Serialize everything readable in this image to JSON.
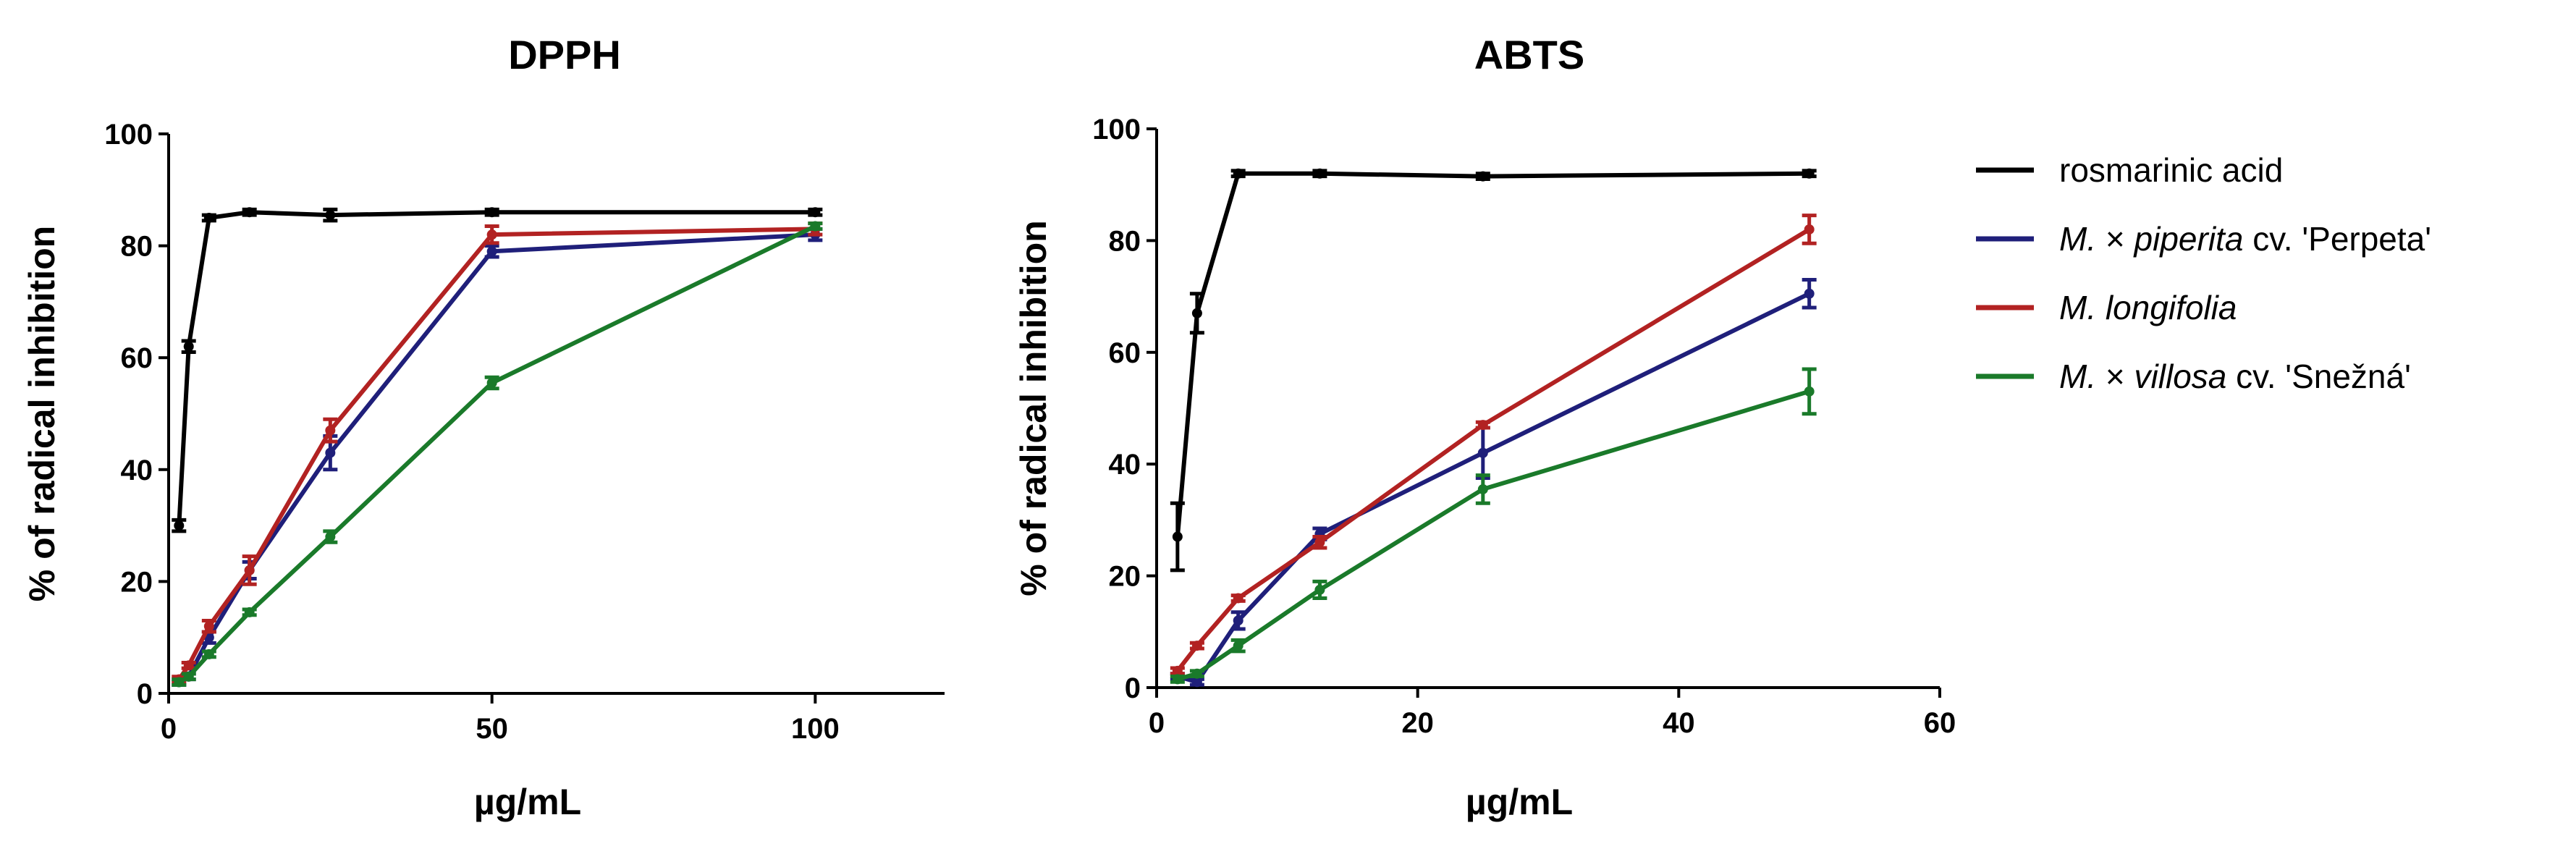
{
  "chart_data": [
    {
      "type": "line",
      "title": "DPPH",
      "xlabel": "µg/mL",
      "ylabel": "% of radical inhibition",
      "xlim": [
        0,
        120
      ],
      "ylim": [
        0,
        100
      ],
      "xticks": [
        "0",
        "50",
        "100"
      ],
      "yticks": [
        "0",
        "20",
        "40",
        "60",
        "80",
        "100"
      ],
      "series": [
        {
          "name": "rosmarinic acid",
          "color": "#000000",
          "x": [
            1.6,
            3.1,
            6.25,
            12.5,
            25,
            50,
            100
          ],
          "y": [
            30,
            62,
            85,
            86,
            85.5,
            86,
            86
          ],
          "err": [
            1,
            1,
            0.5,
            0.5,
            1,
            0.5,
            0.5
          ]
        },
        {
          "name": "M. × piperita cv. 'Perpeta'",
          "color": "#1f1f7a",
          "x": [
            1.6,
            3.1,
            6.25,
            12.5,
            25,
            50,
            100
          ],
          "y": [
            2,
            3,
            10,
            22,
            43,
            79,
            82
          ],
          "err": [
            0.5,
            0.5,
            1,
            1.5,
            3,
            1,
            1
          ]
        },
        {
          "name": "M. longifolia",
          "color": "#b22222",
          "x": [
            1.6,
            3.1,
            6.25,
            12.5,
            25,
            50,
            100
          ],
          "y": [
            2.5,
            5,
            12,
            22,
            47,
            82,
            83
          ],
          "err": [
            0.5,
            0.5,
            1,
            2.5,
            2,
            1.5,
            1
          ]
        },
        {
          "name": "M. × villosa cv. 'Snežná'",
          "color": "#1a7a2a",
          "x": [
            1.6,
            3.1,
            6.25,
            12.5,
            25,
            50,
            100
          ],
          "y": [
            2,
            3,
            7,
            14.5,
            28,
            55.5,
            83.5
          ],
          "err": [
            0.5,
            0.5,
            0.5,
            0.5,
            1,
            1,
            0.5
          ]
        }
      ]
    },
    {
      "type": "line",
      "title": "ABTS",
      "xlabel": "µg/mL",
      "ylabel": "% of radical inhibition",
      "xlim": [
        0,
        60
      ],
      "ylim": [
        0,
        100
      ],
      "xticks": [
        "0",
        "20",
        "40",
        "60"
      ],
      "yticks": [
        "0",
        "20",
        "40",
        "60",
        "80",
        "100"
      ],
      "series": [
        {
          "name": "rosmarinic acid",
          "color": "#000000",
          "x": [
            1.6,
            3.1,
            6.25,
            12.5,
            25,
            50
          ],
          "y": [
            27,
            67,
            92,
            92,
            91.5,
            92
          ],
          "err": [
            6,
            3.5,
            0.5,
            0.5,
            0.5,
            0.5
          ]
        },
        {
          "name": "M. × piperita cv. 'Perpeta'",
          "color": "#1f1f7a",
          "x": [
            1.6,
            3.1,
            6.25,
            12.5,
            25,
            50
          ],
          "y": [
            2,
            1,
            12,
            27.5,
            42,
            70.5
          ],
          "err": [
            0.5,
            0.5,
            1.5,
            1,
            4.5,
            2.5
          ]
        },
        {
          "name": "M. longifolia",
          "color": "#b22222",
          "x": [
            1.6,
            3.1,
            6.25,
            12.5,
            25,
            50
          ],
          "y": [
            3,
            7.5,
            16,
            26,
            47,
            82
          ],
          "err": [
            0.5,
            0.5,
            0.5,
            1,
            0.5,
            2.5
          ]
        },
        {
          "name": "M. × villosa cv. 'Snežná'",
          "color": "#1a7a2a",
          "x": [
            1.6,
            3.1,
            6.25,
            12.5,
            25,
            50
          ],
          "y": [
            1.5,
            2.5,
            7.5,
            17.5,
            35.5,
            53
          ],
          "err": [
            0.5,
            0.5,
            1,
            1.5,
            2.5,
            4
          ]
        }
      ]
    }
  ],
  "legend": {
    "position": "right",
    "items": [
      {
        "color": "#000000",
        "parts": [
          {
            "text": "rosmarinic acid",
            "italic": false
          }
        ]
      },
      {
        "color": "#1f1f7a",
        "parts": [
          {
            "text": "M.",
            "italic": true
          },
          {
            "text": " × ",
            "italic": false
          },
          {
            "text": "piperita",
            "italic": true
          },
          {
            "text": " cv. 'Perpeta'",
            "italic": false
          }
        ]
      },
      {
        "color": "#b22222",
        "parts": [
          {
            "text": "M. longifolia",
            "italic": true
          }
        ]
      },
      {
        "color": "#1a7a2a",
        "parts": [
          {
            "text": "M.",
            "italic": true
          },
          {
            "text": " × ",
            "italic": false
          },
          {
            "text": "villosa",
            "italic": true
          },
          {
            "text": " cv. 'Snežná'",
            "italic": false
          }
        ]
      }
    ]
  }
}
